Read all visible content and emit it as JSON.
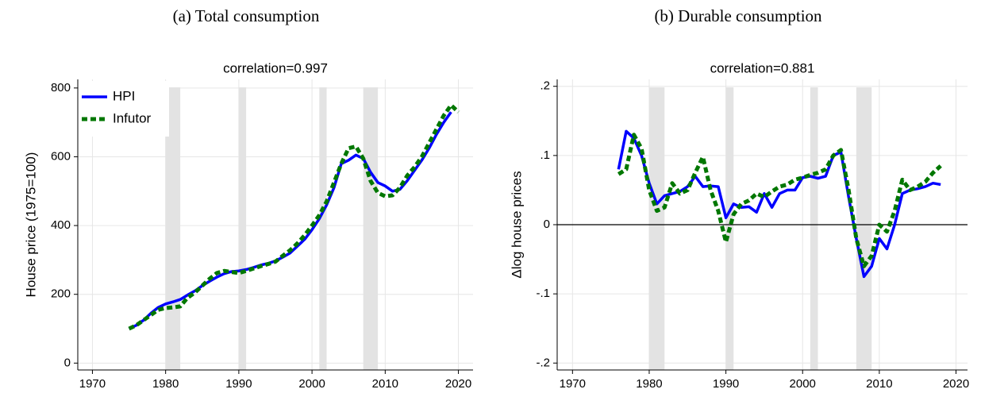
{
  "chart_data": [
    {
      "type": "line",
      "caption": "(a) Total consumption",
      "title": "correlation=0.997",
      "ylabel": "House price (1975=100)",
      "x": [
        1975,
        1976,
        1977,
        1978,
        1979,
        1980,
        1981,
        1982,
        1983,
        1984,
        1985,
        1986,
        1987,
        1988,
        1989,
        1990,
        1991,
        1992,
        1993,
        1994,
        1995,
        1996,
        1997,
        1998,
        1999,
        2000,
        2001,
        2002,
        2003,
        2004,
        2005,
        2006,
        2007,
        2008,
        2009,
        2010,
        2011,
        2012,
        2013,
        2014,
        2015,
        2016,
        2017,
        2018,
        2019,
        2020
      ],
      "series": [
        {
          "name": "HPI",
          "color": "#0000ff",
          "style": "solid",
          "values": [
            100,
            110,
            125,
            145,
            162,
            172,
            178,
            185,
            198,
            210,
            225,
            238,
            250,
            260,
            266,
            268,
            272,
            278,
            285,
            290,
            297,
            308,
            320,
            340,
            360,
            388,
            420,
            460,
            510,
            580,
            590,
            605,
            595,
            555,
            525,
            515,
            500,
            505,
            530,
            560,
            590,
            625,
            665,
            700,
            730,
            null
          ]
        },
        {
          "name": "Infutor",
          "color": "#007700",
          "style": "dashed",
          "values": [
            100,
            110,
            125,
            140,
            155,
            160,
            162,
            165,
            190,
            205,
            225,
            245,
            262,
            268,
            265,
            262,
            268,
            275,
            282,
            288,
            295,
            312,
            328,
            348,
            372,
            400,
            430,
            470,
            525,
            580,
            625,
            630,
            595,
            530,
            495,
            485,
            488,
            510,
            545,
            570,
            600,
            640,
            680,
            720,
            750,
            730
          ]
        }
      ],
      "xlim": [
        1968,
        2022
      ],
      "xticks": [
        1970,
        1980,
        1990,
        2000,
        2010,
        2020
      ],
      "ylim": [
        -20,
        825
      ],
      "yticks": [
        0,
        200,
        400,
        600,
        800
      ],
      "recessions": [
        [
          1980,
          1982
        ],
        [
          1990,
          1991
        ],
        [
          2001,
          2002
        ],
        [
          2007,
          2009
        ]
      ],
      "grid": true,
      "legend": "upper left"
    },
    {
      "type": "line",
      "caption": "(b) Durable consumption",
      "title": "correlation=0.881",
      "ylabel": "Δlog house prices",
      "x": [
        1976,
        1977,
        1978,
        1979,
        1980,
        1981,
        1982,
        1983,
        1984,
        1985,
        1986,
        1987,
        1988,
        1989,
        1990,
        1991,
        1992,
        1993,
        1994,
        1995,
        1996,
        1997,
        1998,
        1999,
        2000,
        2001,
        2002,
        2003,
        2004,
        2005,
        2006,
        2007,
        2008,
        2009,
        2010,
        2011,
        2012,
        2013,
        2014,
        2015,
        2016,
        2017,
        2018
      ],
      "series": [
        {
          "color": "#0000ff",
          "style": "solid",
          "values": [
            0.08,
            0.135,
            0.125,
            0.1,
            0.06,
            0.03,
            0.042,
            0.045,
            0.048,
            0.055,
            0.07,
            0.055,
            0.056,
            0.055,
            0.01,
            0.03,
            0.025,
            0.026,
            0.018,
            0.045,
            0.025,
            0.045,
            0.05,
            0.05,
            0.068,
            0.07,
            0.067,
            0.07,
            0.1,
            0.105,
            0.04,
            -0.02,
            -0.075,
            -0.06,
            -0.02,
            -0.035,
            0.0,
            0.045,
            0.05,
            0.052,
            0.055,
            0.06,
            0.058
          ]
        },
        {
          "color": "#007700",
          "style": "dashed",
          "values": [
            0.073,
            0.08,
            0.13,
            0.11,
            0.05,
            0.02,
            0.025,
            0.06,
            0.045,
            0.05,
            0.075,
            0.098,
            0.05,
            0.02,
            -0.025,
            0.015,
            0.03,
            0.035,
            0.045,
            0.04,
            0.048,
            0.055,
            0.058,
            0.065,
            0.068,
            0.072,
            0.075,
            0.08,
            0.1,
            0.108,
            0.05,
            -0.02,
            -0.06,
            -0.045,
            0.0,
            -0.01,
            0.02,
            0.065,
            0.05,
            0.055,
            0.062,
            0.075,
            0.085
          ]
        }
      ],
      "xlim": [
        1968,
        2021.5
      ],
      "xticks": [
        1970,
        1980,
        1990,
        2000,
        2010,
        2020
      ],
      "ylim": [
        -0.21,
        0.21
      ],
      "yticks": [
        {
          "value": 0.2,
          "label": ".2"
        },
        {
          "value": 0.1,
          "label": ".1"
        },
        0,
        {
          "value": -0.1,
          "label": "-.1"
        },
        {
          "value": -0.2,
          "label": "-.2"
        }
      ],
      "hline": 0,
      "recessions": [
        [
          1980,
          1982
        ],
        [
          1990,
          1991
        ],
        [
          2001,
          2002
        ],
        [
          2007,
          2009
        ]
      ],
      "grid": true
    }
  ]
}
